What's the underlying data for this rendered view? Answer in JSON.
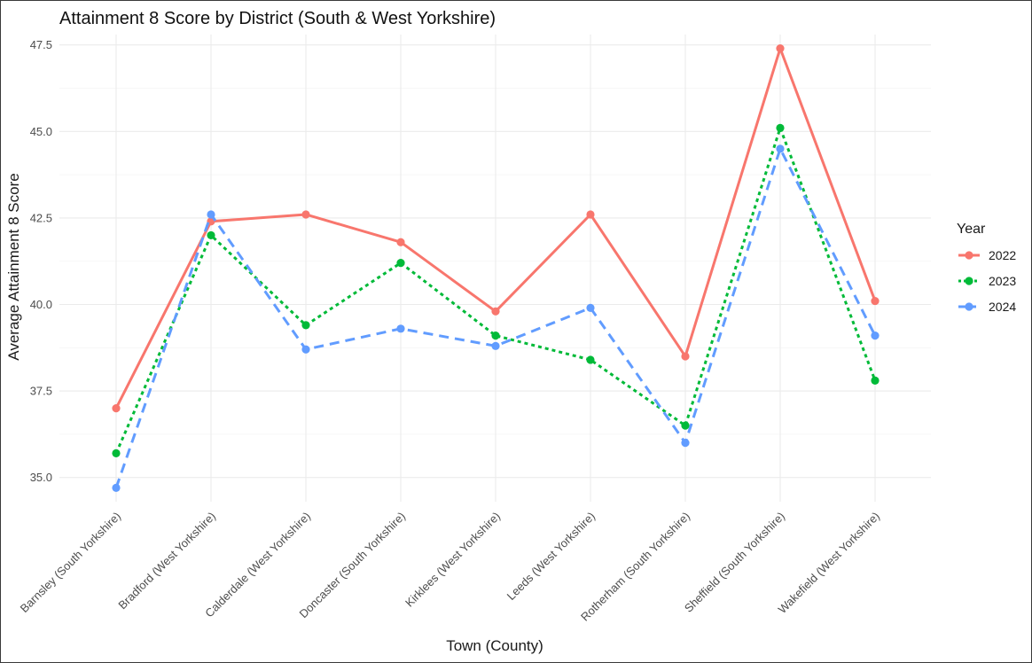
{
  "chart_data": {
    "type": "line",
    "title": "Attainment 8 Score by District (South & West Yorkshire)",
    "xlabel": "Town (County)",
    "ylabel": "Average Attainment 8 Score",
    "ylim": [
      34.3,
      47.8
    ],
    "yticks": [
      35.0,
      37.5,
      40.0,
      42.5,
      45.0,
      47.5
    ],
    "ytick_labels": [
      "35.0",
      "37.5",
      "40.0",
      "42.5",
      "45.0",
      "47.5"
    ],
    "grid": true,
    "legend": {
      "title": "Year",
      "position": "right"
    },
    "categories": [
      "Barnsley (South Yorkshire)",
      "Bradford (West Yorkshire)",
      "Calderdale (West Yorkshire)",
      "Doncaster (South Yorkshire)",
      "Kirklees (West Yorkshire)",
      "Leeds (West Yorkshire)",
      "Rotherham (South Yorkshire)",
      "Sheffield (South Yorkshire)",
      "Wakefield (West Yorkshire)"
    ],
    "series": [
      {
        "name": "2022",
        "color": "#F8766D",
        "dash": "solid",
        "values": [
          37.0,
          42.4,
          42.6,
          41.8,
          39.8,
          42.6,
          38.5,
          47.4,
          40.1
        ]
      },
      {
        "name": "2023",
        "color": "#00BA38",
        "dash": "dotted",
        "values": [
          35.7,
          42.0,
          39.4,
          41.2,
          39.1,
          38.4,
          36.5,
          45.1,
          37.8
        ]
      },
      {
        "name": "2024",
        "color": "#619CFF",
        "dash": "dashed",
        "values": [
          34.7,
          42.6,
          38.7,
          39.3,
          38.8,
          39.9,
          36.0,
          44.5,
          39.1
        ]
      }
    ]
  }
}
